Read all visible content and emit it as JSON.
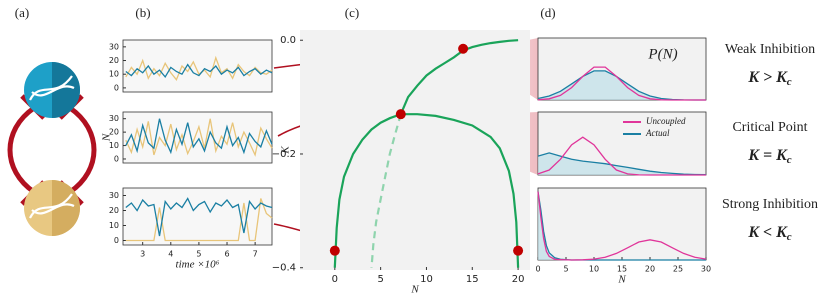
{
  "panel_labels": [
    "(a)",
    "(b)",
    "(c)",
    "(d)"
  ],
  "regimes": [
    {
      "name": "Weak Inhibition",
      "condition": "K > K",
      "subscript": "c"
    },
    {
      "name": "Critical Point",
      "condition": "K = K",
      "subscript": "c"
    },
    {
      "name": "Strong Inhibition",
      "condition": "K < K",
      "subscript": "c"
    }
  ],
  "chart_data": [
    {
      "type": "line",
      "background": "#f7f7f7",
      "x": [
        2.4,
        2.6,
        2.8,
        3.0,
        3.2,
        3.4,
        3.6,
        3.8,
        4.0,
        4.2,
        4.4,
        4.6,
        4.8,
        5.0,
        5.2,
        5.4,
        5.6,
        5.8,
        6.0,
        6.2,
        6.4,
        6.6,
        6.8,
        7.0,
        7.2,
        7.4,
        7.6
      ],
      "xlim": [
        2.3,
        7.6
      ],
      "ylim": [
        -3,
        35
      ],
      "yticks": [
        0,
        10,
        20,
        30
      ],
      "series": [
        {
          "color": "#e8c57a",
          "values": [
            8,
            15,
            10,
            20,
            7,
            14,
            9,
            18,
            11,
            6,
            16,
            12,
            19,
            10,
            13,
            8,
            22,
            11,
            14,
            7,
            17,
            12,
            9,
            15,
            11,
            10,
            13
          ]
        },
        {
          "color": "#1a7fa3",
          "values": [
            12,
            9,
            14,
            11,
            16,
            10,
            13,
            8,
            15,
            12,
            10,
            17,
            11,
            9,
            14,
            12,
            16,
            10,
            13,
            11,
            15,
            9,
            12,
            14,
            10,
            13,
            11
          ]
        }
      ]
    },
    {
      "type": "line",
      "background": "#f7f7f7",
      "ylabel": "N",
      "x": [
        2.4,
        2.6,
        2.8,
        3.0,
        3.2,
        3.4,
        3.6,
        3.8,
        4.0,
        4.2,
        4.4,
        4.6,
        4.8,
        5.0,
        5.2,
        5.4,
        5.6,
        5.8,
        6.0,
        6.2,
        6.4,
        6.6,
        6.8,
        7.0,
        7.2,
        7.4,
        7.6
      ],
      "xlim": [
        2.3,
        7.6
      ],
      "ylim": [
        -3,
        35
      ],
      "yticks": [
        0,
        10,
        20,
        30
      ],
      "series": [
        {
          "color": "#e8c57a",
          "values": [
            14,
            5,
            22,
            9,
            28,
            3,
            16,
            10,
            26,
            7,
            18,
            4,
            13,
            24,
            8,
            30,
            6,
            17,
            11,
            27,
            9,
            20,
            12,
            3,
            23,
            15,
            8
          ]
        },
        {
          "color": "#1a7fa3",
          "values": [
            10,
            18,
            6,
            25,
            12,
            8,
            30,
            14,
            5,
            22,
            11,
            27,
            9,
            15,
            6,
            20,
            12,
            8,
            24,
            10,
            16,
            5,
            19,
            13,
            9,
            21,
            11
          ]
        }
      ]
    },
    {
      "type": "line",
      "background": "#f7f7f7",
      "xlabel": "time ×10⁶",
      "x": [
        2.4,
        2.6,
        2.8,
        3.0,
        3.2,
        3.4,
        3.6,
        3.8,
        4.0,
        4.2,
        4.4,
        4.6,
        4.8,
        5.0,
        5.2,
        5.4,
        5.6,
        5.8,
        6.0,
        6.2,
        6.4,
        6.6,
        6.8,
        7.0,
        7.2,
        7.4,
        7.6
      ],
      "xlim": [
        2.3,
        7.6
      ],
      "xticks": [
        3,
        4,
        5,
        6,
        7
      ],
      "ylim": [
        -3,
        35
      ],
      "yticks": [
        0,
        10,
        20,
        30
      ],
      "series": [
        {
          "color": "#e8c57a",
          "values": [
            0,
            0,
            0,
            0,
            0,
            0,
            22,
            0,
            0,
            0,
            0,
            0,
            0,
            0,
            0,
            0,
            0,
            0,
            0,
            0,
            0,
            25,
            0,
            0,
            28,
            18,
            15
          ]
        },
        {
          "color": "#1a7fa3",
          "values": [
            22,
            25,
            20,
            27,
            23,
            24,
            3,
            26,
            21,
            25,
            22,
            28,
            20,
            24,
            26,
            19,
            25,
            23,
            27,
            22,
            24,
            5,
            26,
            21,
            25,
            23,
            22
          ]
        }
      ]
    },
    {
      "type": "line",
      "background": "#f2f2f2",
      "xlabel": "N",
      "ylabel": "K",
      "xlim": [
        -3.8,
        21.3
      ],
      "ylim": [
        -0.404,
        0.018
      ],
      "xticks": [
        0,
        5,
        10,
        15,
        20
      ],
      "yticks": [
        {
          "value": 0,
          "label": "0.0"
        },
        {
          "value": -0.2,
          "label": "−0.2"
        },
        {
          "value": -0.4,
          "label": "−0.4"
        }
      ],
      "series": [
        {
          "color": "#1aa45a",
          "dashed": false,
          "x": [
            0,
            0.2,
            0.5,
            1,
            2,
            3,
            4,
            5,
            6,
            7.2,
            9,
            11,
            13,
            15,
            17,
            18,
            19,
            19.5,
            19.8,
            20
          ],
          "values": [
            -0.4,
            -0.33,
            -0.28,
            -0.24,
            -0.2,
            -0.175,
            -0.157,
            -0.145,
            -0.137,
            -0.13,
            -0.13,
            -0.133,
            -0.14,
            -0.15,
            -0.17,
            -0.19,
            -0.23,
            -0.27,
            -0.32,
            -0.4
          ]
        },
        {
          "color": "#1aa45a",
          "dashed": false,
          "x": [
            7.2,
            8,
            9,
            10,
            11,
            12,
            13,
            14,
            15,
            16,
            17,
            18,
            19,
            20
          ],
          "values": [
            -0.13,
            -0.1,
            -0.08,
            -0.062,
            -0.05,
            -0.04,
            -0.03,
            -0.018,
            -0.012,
            -0.008,
            -0.005,
            -0.003,
            -0.001,
            0
          ]
        },
        {
          "color": "#8fd4ad",
          "dashed": true,
          "x": [
            7.2,
            6.5,
            6,
            5.5,
            5,
            4.5,
            4.2,
            4
          ],
          "values": [
            -0.13,
            -0.17,
            -0.2,
            -0.24,
            -0.28,
            -0.32,
            -0.36,
            -0.4
          ]
        }
      ],
      "points": {
        "color": "#c00000",
        "x": [
          14,
          7.2,
          0,
          20
        ],
        "values": [
          -0.015,
          -0.13,
          -0.37,
          -0.37
        ]
      }
    },
    {
      "type": "line",
      "background": "#f2f2f2",
      "annotation": "P(N)",
      "xlim": [
        0,
        30
      ],
      "ylim": [
        0,
        1
      ],
      "series": [
        {
          "color": "#1a7fa3",
          "fill": "#bfe0e8",
          "x": [
            0,
            2,
            4,
            6,
            8,
            10,
            12,
            14,
            16,
            18,
            20,
            22,
            24,
            26,
            28,
            30
          ],
          "values": [
            0.024,
            0.065,
            0.14,
            0.26,
            0.38,
            0.47,
            0.47,
            0.38,
            0.26,
            0.14,
            0.065,
            0.024,
            0.008,
            0.002,
            0,
            0
          ]
        },
        {
          "color": "#e0359a",
          "x": [
            0,
            2,
            4,
            6,
            8,
            10,
            12,
            14,
            16,
            18,
            20,
            22,
            24,
            26,
            28,
            30
          ],
          "values": [
            0.004,
            0.02,
            0.074,
            0.2,
            0.38,
            0.53,
            0.53,
            0.38,
            0.2,
            0.074,
            0.02,
            0.004,
            0,
            0,
            0,
            0
          ]
        }
      ]
    },
    {
      "type": "line",
      "background": "#f2f2f2",
      "xlim": [
        0,
        30
      ],
      "ylim": [
        0,
        1
      ],
      "series": [
        {
          "name": "Actual",
          "color": "#1a7fa3",
          "fill": "#bfe0e8",
          "x": [
            0,
            2,
            4,
            6,
            8,
            10,
            12,
            14,
            16,
            18,
            20,
            22,
            24,
            26,
            28,
            30
          ],
          "values": [
            0.3,
            0.35,
            0.3,
            0.25,
            0.22,
            0.2,
            0.18,
            0.15,
            0.12,
            0.09,
            0.06,
            0.04,
            0.025,
            0.015,
            0.008,
            0.004
          ]
        },
        {
          "name": "Uncoupled",
          "color": "#e0359a",
          "x": [
            0,
            2,
            4,
            6,
            8,
            10,
            12,
            14,
            16,
            18,
            20,
            22,
            24,
            26,
            28,
            30
          ],
          "values": [
            0.017,
            0.08,
            0.25,
            0.48,
            0.6,
            0.48,
            0.25,
            0.08,
            0.017,
            0.002,
            0,
            0,
            0,
            0,
            0,
            0
          ]
        }
      ],
      "legend_order": [
        1,
        0
      ]
    },
    {
      "type": "line",
      "background": "#f2f2f2",
      "xlabel": "N",
      "xlim": [
        0,
        30
      ],
      "ylim": [
        0,
        1
      ],
      "xticks": [
        0,
        5,
        10,
        15,
        20,
        25,
        30
      ],
      "series": [
        {
          "color": "#1a7fa3",
          "fill": "#bfe0e8",
          "x": [
            0,
            0.5,
            1,
            1.5,
            2,
            3,
            4,
            6,
            8,
            30
          ],
          "values": [
            0.95,
            0.7,
            0.4,
            0.2,
            0.1,
            0.03,
            0.01,
            0,
            0,
            0
          ]
        },
        {
          "color": "#e0359a",
          "x": [
            0,
            0.5,
            1,
            1.5,
            2,
            3,
            4,
            6,
            8,
            10,
            12,
            14,
            16,
            18,
            20,
            22,
            24,
            26,
            28,
            30
          ],
          "values": [
            0.95,
            0.6,
            0.3,
            0.12,
            0.05,
            0.01,
            0.005,
            0,
            0.003,
            0.012,
            0.038,
            0.091,
            0.17,
            0.25,
            0.28,
            0.25,
            0.17,
            0.091,
            0.038,
            0.012
          ]
        }
      ]
    }
  ]
}
